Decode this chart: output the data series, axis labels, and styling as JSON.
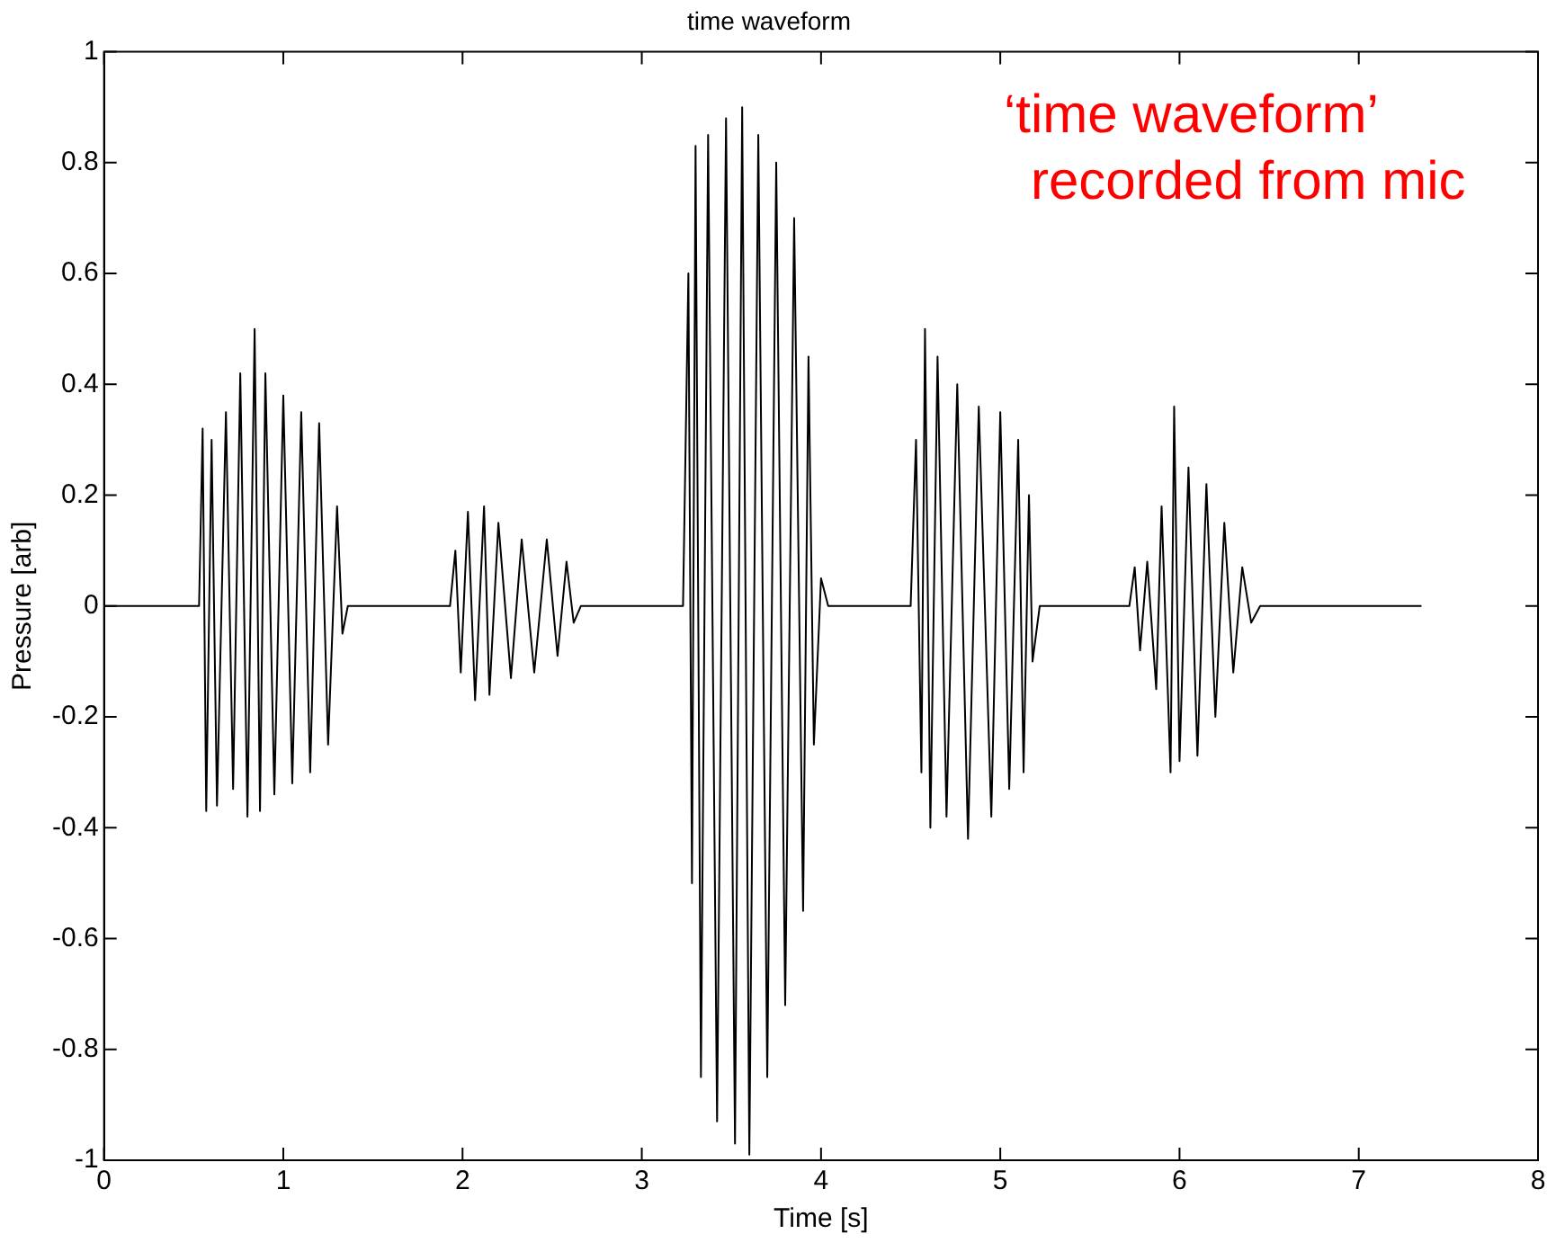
{
  "chart_data": {
    "type": "line",
    "title": "time waveform",
    "xlabel": "Time [s]",
    "ylabel": "Pressure [arb]",
    "annotations": [
      "‘time waveform’\nrecorded from mic"
    ],
    "x": [
      0,
      0.02,
      0.53,
      0.55,
      0.57,
      0.6,
      0.63,
      0.68,
      0.72,
      0.76,
      0.8,
      0.84,
      0.87,
      0.9,
      0.95,
      1.0,
      1.05,
      1.1,
      1.15,
      1.2,
      1.25,
      1.3,
      1.33,
      1.36,
      1.93,
      1.96,
      1.99,
      2.03,
      2.07,
      2.12,
      2.15,
      2.2,
      2.27,
      2.33,
      2.4,
      2.47,
      2.53,
      2.58,
      2.62,
      2.66,
      3.23,
      3.26,
      3.28,
      3.3,
      3.33,
      3.37,
      3.42,
      3.47,
      3.52,
      3.56,
      3.6,
      3.65,
      3.7,
      3.75,
      3.8,
      3.85,
      3.9,
      3.93,
      3.96,
      4.0,
      4.04,
      4.5,
      4.53,
      4.56,
      4.58,
      4.61,
      4.65,
      4.7,
      4.76,
      4.82,
      4.88,
      4.95,
      5.0,
      5.05,
      5.1,
      5.13,
      5.16,
      5.18,
      5.22,
      5.72,
      5.75,
      5.78,
      5.82,
      5.87,
      5.9,
      5.95,
      5.97,
      6.0,
      6.05,
      6.1,
      6.15,
      6.2,
      6.25,
      6.3,
      6.35,
      6.4,
      6.45,
      7.35
    ],
    "series": [
      {
        "color": "#000000",
        "values": [
          0,
          0,
          0,
          0.32,
          -0.37,
          0.3,
          -0.36,
          0.35,
          -0.33,
          0.42,
          -0.38,
          0.5,
          -0.37,
          0.42,
          -0.34,
          0.38,
          -0.32,
          0.35,
          -0.3,
          0.33,
          -0.25,
          0.18,
          -0.05,
          0,
          0,
          0.1,
          -0.12,
          0.17,
          -0.17,
          0.18,
          -0.16,
          0.15,
          -0.13,
          0.12,
          -0.12,
          0.12,
          -0.09,
          0.08,
          -0.03,
          0,
          0,
          0.6,
          -0.5,
          0.83,
          -0.85,
          0.85,
          -0.93,
          0.88,
          -0.97,
          0.9,
          -0.99,
          0.85,
          -0.85,
          0.8,
          -0.72,
          0.7,
          -0.55,
          0.45,
          -0.25,
          0.05,
          0,
          0,
          0.3,
          -0.3,
          0.5,
          -0.4,
          0.45,
          -0.38,
          0.4,
          -0.42,
          0.36,
          -0.38,
          0.35,
          -0.33,
          0.3,
          -0.3,
          0.2,
          -0.1,
          0,
          0,
          0.07,
          -0.08,
          0.08,
          -0.15,
          0.18,
          -0.3,
          0.36,
          -0.28,
          0.25,
          -0.27,
          0.22,
          -0.2,
          0.15,
          -0.12,
          0.07,
          -0.03,
          0,
          0
        ]
      }
    ],
    "xlim": [
      0,
      8
    ],
    "xticks": [
      0,
      1,
      2,
      3,
      4,
      5,
      6,
      7,
      8
    ],
    "ylim": [
      -1,
      1
    ],
    "yticks": [
      -1,
      -0.8,
      -0.6,
      -0.4,
      -0.2,
      0,
      0.2,
      0.4,
      0.6,
      0.8,
      1
    ],
    "grid": false,
    "legend": false,
    "marker": "none",
    "line_style": "solid"
  }
}
